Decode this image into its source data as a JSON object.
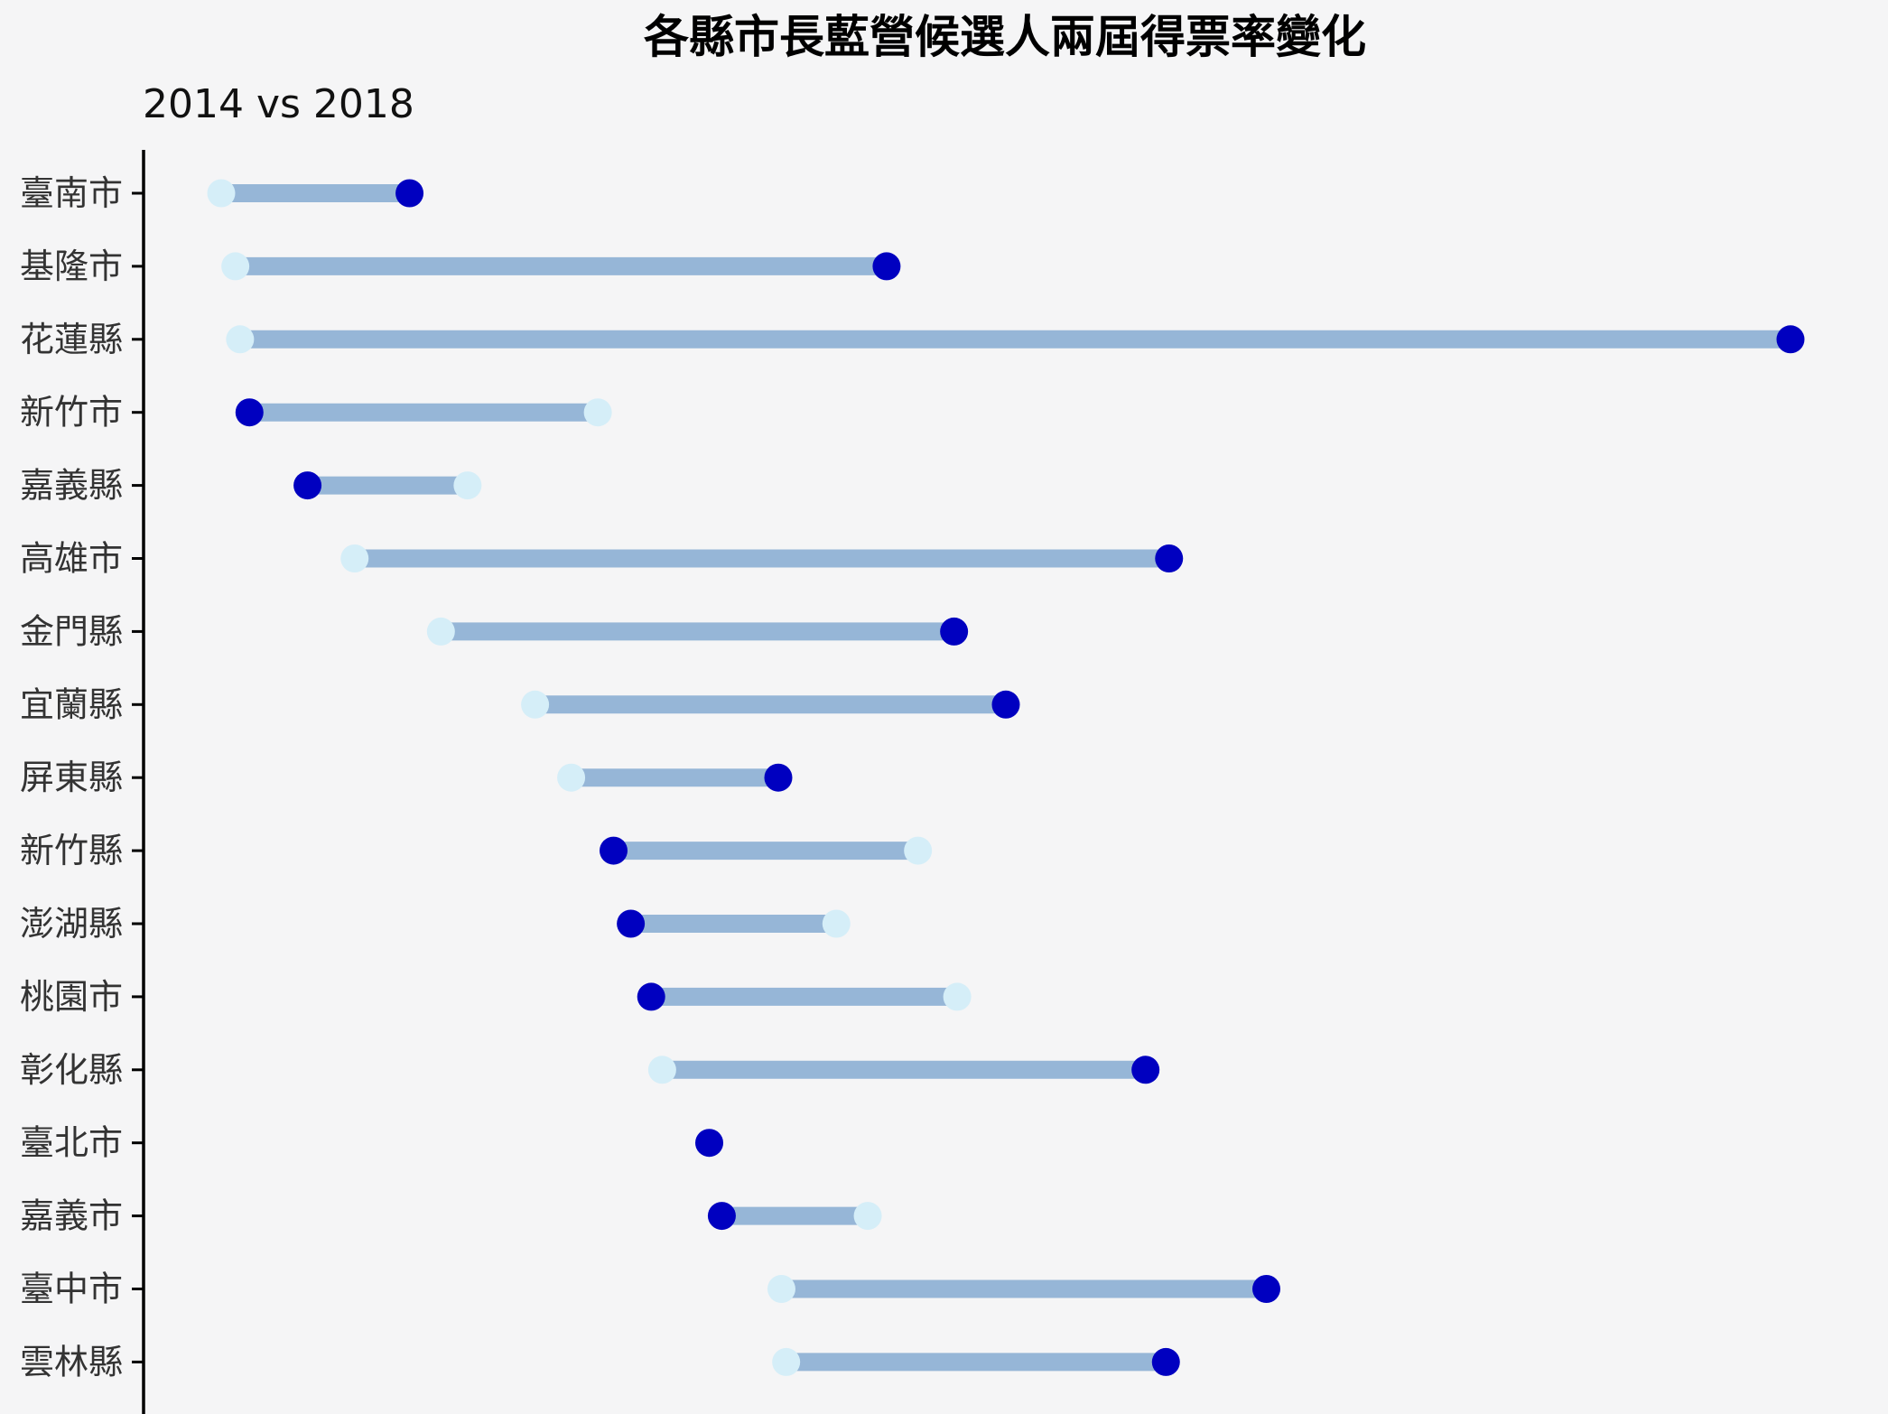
{
  "chart_data": {
    "type": "dumbbell",
    "title": "各縣市長藍營候選人兩屆得票率變化",
    "subtitle": "2014 vs 2018",
    "categories": [
      "臺南市",
      "基隆市",
      "花蓮縣",
      "新竹市",
      "嘉義縣",
      "高雄市",
      "金門縣",
      "宜蘭縣",
      "屏東縣",
      "新竹縣",
      "澎湖縣",
      "桃園市",
      "彰化縣",
      "臺北市",
      "嘉義市",
      "臺中市",
      "雲林縣"
    ],
    "series": [
      {
        "name": "2014",
        "color": "#d5eef8",
        "values": [
          0.0,
          0.9,
          1.2,
          24.0,
          15.7,
          8.5,
          14.0,
          20.0,
          22.3,
          44.4,
          39.2,
          46.9,
          28.1,
          31.1,
          41.2,
          35.7,
          36.0
        ]
      },
      {
        "name": "2018",
        "color": "#0000c0",
        "values": [
          12.0,
          42.4,
          100.0,
          1.8,
          5.5,
          60.4,
          46.7,
          50.0,
          35.5,
          25.0,
          26.1,
          27.4,
          58.9,
          31.1,
          31.9,
          66.6,
          60.2
        ]
      }
    ],
    "connector_color": "#96b6d7",
    "xlim": [
      0,
      100
    ],
    "x_axis_visible": false,
    "grid": false,
    "legend": "none"
  }
}
